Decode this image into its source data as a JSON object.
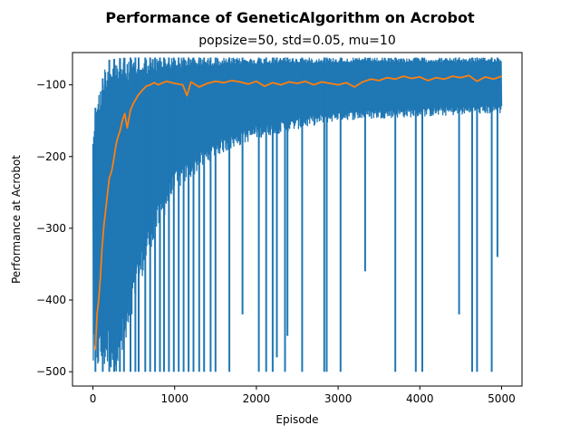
{
  "chart_data": {
    "type": "line",
    "title": "Performance of GeneticAlgorithm on Acrobot",
    "subtitle": "popsize=50, std=0.05, mu=10",
    "xlabel": "Episode",
    "ylabel": "Performance at Acrobot",
    "xlim": [
      -250,
      5250
    ],
    "ylim": [
      -520,
      -55
    ],
    "xticks": [
      0,
      1000,
      2000,
      3000,
      4000,
      5000
    ],
    "yticks": [
      -500,
      -400,
      -300,
      -200,
      -100
    ],
    "grid": false,
    "legend": "none",
    "series": [
      {
        "role": "raw episode performance",
        "color": "#1f77b4",
        "band": {
          "x": [
            0,
            50,
            100,
            150,
            200,
            300,
            400,
            500,
            700,
            1000,
            1500,
            2000,
            3000,
            4000,
            5000
          ],
          "upper": [
            -165,
            -110,
            -105,
            -70,
            -65,
            -63,
            -62,
            -62,
            -62,
            -62,
            -62,
            -62,
            -62,
            -62,
            -62
          ],
          "lower": [
            -500,
            -500,
            -500,
            -500,
            -500,
            -500,
            -480,
            -420,
            -330,
            -250,
            -200,
            -175,
            -150,
            -145,
            -140
          ]
        },
        "dips": [
          {
            "x": 30,
            "y": -500
          },
          {
            "x": 120,
            "y": -500
          },
          {
            "x": 200,
            "y": -500
          },
          {
            "x": 260,
            "y": -500
          },
          {
            "x": 330,
            "y": -500
          },
          {
            "x": 380,
            "y": -500
          },
          {
            "x": 460,
            "y": -500
          },
          {
            "x": 520,
            "y": -500
          },
          {
            "x": 560,
            "y": -500
          },
          {
            "x": 640,
            "y": -500
          },
          {
            "x": 700,
            "y": -500
          },
          {
            "x": 760,
            "y": -500
          },
          {
            "x": 820,
            "y": -500
          },
          {
            "x": 870,
            "y": -500
          },
          {
            "x": 930,
            "y": -500
          },
          {
            "x": 990,
            "y": -500
          },
          {
            "x": 1050,
            "y": -500
          },
          {
            "x": 1110,
            "y": -500
          },
          {
            "x": 1170,
            "y": -500
          },
          {
            "x": 1230,
            "y": -500
          },
          {
            "x": 1300,
            "y": -500
          },
          {
            "x": 1360,
            "y": -500
          },
          {
            "x": 1440,
            "y": -500
          },
          {
            "x": 1500,
            "y": -500
          },
          {
            "x": 1670,
            "y": -500
          },
          {
            "x": 1830,
            "y": -420
          },
          {
            "x": 2030,
            "y": -500
          },
          {
            "x": 2120,
            "y": -500
          },
          {
            "x": 2200,
            "y": -500
          },
          {
            "x": 2250,
            "y": -480
          },
          {
            "x": 2350,
            "y": -500
          },
          {
            "x": 2380,
            "y": -450
          },
          {
            "x": 2560,
            "y": -500
          },
          {
            "x": 2830,
            "y": -500
          },
          {
            "x": 2860,
            "y": -500
          },
          {
            "x": 3030,
            "y": -500
          },
          {
            "x": 3330,
            "y": -360
          },
          {
            "x": 3700,
            "y": -500
          },
          {
            "x": 3950,
            "y": -500
          },
          {
            "x": 4030,
            "y": -500
          },
          {
            "x": 4480,
            "y": -420
          },
          {
            "x": 4640,
            "y": -500
          },
          {
            "x": 4700,
            "y": -500
          },
          {
            "x": 4880,
            "y": -500
          },
          {
            "x": 4950,
            "y": -340
          }
        ]
      },
      {
        "role": "smoothed average",
        "color": "#ff7f0e",
        "x": [
          30,
          50,
          70,
          90,
          110,
          130,
          150,
          170,
          200,
          230,
          260,
          280,
          300,
          330,
          360,
          390,
          420,
          460,
          500,
          550,
          600,
          650,
          700,
          750,
          800,
          900,
          1000,
          1100,
          1150,
          1200,
          1300,
          1400,
          1500,
          1600,
          1700,
          1800,
          1900,
          2000,
          2100,
          2200,
          2300,
          2400,
          2500,
          2600,
          2700,
          2800,
          2900,
          3000,
          3100,
          3200,
          3300,
          3400,
          3500,
          3600,
          3700,
          3800,
          3900,
          4000,
          4100,
          4200,
          4300,
          4400,
          4500,
          4600,
          4700,
          4800,
          4900,
          5000
        ],
        "y": [
          -470,
          -420,
          -400,
          -370,
          -330,
          -300,
          -280,
          -260,
          -230,
          -220,
          -200,
          -185,
          -175,
          -165,
          -150,
          -140,
          -160,
          -135,
          -125,
          -115,
          -108,
          -102,
          -100,
          -97,
          -100,
          -95,
          -98,
          -100,
          -115,
          -96,
          -103,
          -98,
          -95,
          -97,
          -94,
          -96,
          -99,
          -95,
          -102,
          -97,
          -100,
          -96,
          -98,
          -95,
          -100,
          -96,
          -98,
          -100,
          -97,
          -103,
          -96,
          -92,
          -94,
          -90,
          -92,
          -88,
          -91,
          -89,
          -94,
          -90,
          -92,
          -88,
          -90,
          -87,
          -95,
          -89,
          -92,
          -88
        ]
      }
    ]
  }
}
